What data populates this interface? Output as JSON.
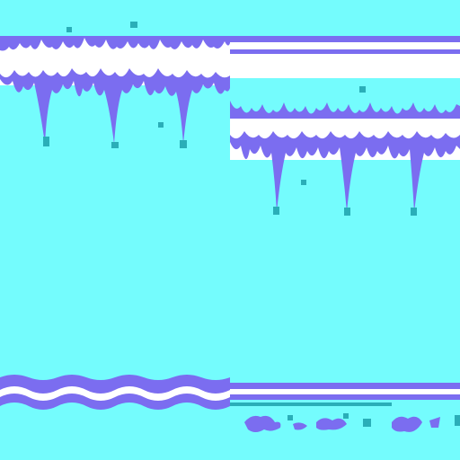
{
  "sheet": {
    "background": "#74FCFD",
    "colors": {
      "ice": "#7B6DF0",
      "snow": "#FFFFFF",
      "frost": "#2AAEB8",
      "shadow": "#5C52D8"
    },
    "tiles": [
      {
        "name": "icicle-tile-a",
        "kind": "icicles"
      },
      {
        "name": "icicle-tile-b",
        "kind": "icicles"
      },
      {
        "name": "snow-ledge-strip",
        "kind": "ledge"
      },
      {
        "name": "ice-wave-platform",
        "kind": "wave"
      },
      {
        "name": "ice-rim-strip",
        "kind": "rim"
      },
      {
        "name": "ice-debris-row",
        "kind": "debris"
      }
    ]
  }
}
